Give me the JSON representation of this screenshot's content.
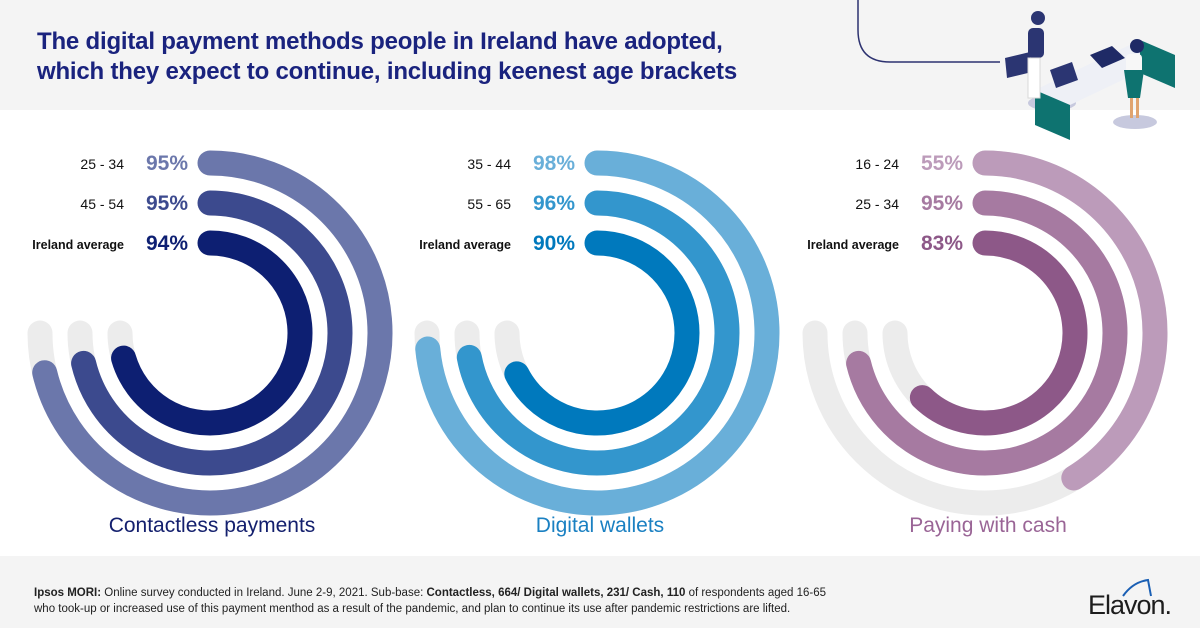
{
  "title_line1": "The digital payment methods people in Ireland have adopted,",
  "title_line2": "which they expect to continue, including keenest age brackets",
  "chart_data": {
    "type": "radial-bar",
    "scale_max_percent": 100,
    "groups": [
      {
        "name": "Contactless payments",
        "label_color": "#14206e",
        "rows": [
          {
            "label": "25 - 34",
            "value": 95,
            "display": "95%",
            "color": "#6b77ab",
            "bold_label": false
          },
          {
            "label": "45 - 54",
            "value": 95,
            "display": "95%",
            "color": "#3c4a8e",
            "bold_label": false
          },
          {
            "label": "Ireland average",
            "value": 94,
            "display": "94%",
            "color": "#0d1f72",
            "bold_label": true
          }
        ]
      },
      {
        "name": "Digital wallets",
        "label_color": "#1a80c2",
        "rows": [
          {
            "label": "35 - 44",
            "value": 98,
            "display": "98%",
            "color": "#69afd9",
            "bold_label": false
          },
          {
            "label": "55 - 65",
            "value": 96,
            "display": "96%",
            "color": "#3396cd",
            "bold_label": false
          },
          {
            "label": "Ireland average",
            "value": 90,
            "display": "90%",
            "color": "#0079bd",
            "bold_label": true
          }
        ]
      },
      {
        "name": "Paying with cash",
        "label_color": "#9a6596",
        "rows": [
          {
            "label": "16 - 24",
            "value": 55,
            "display": "55%",
            "color": "#bc9bba",
            "bold_label": false
          },
          {
            "label": "25 - 34",
            "value": 95,
            "display": "95%",
            "color": "#a67aa1",
            "bold_label": false
          },
          {
            "label": "Ireland average",
            "value": 83,
            "display": "83%",
            "color": "#8d5888",
            "bold_label": true
          }
        ]
      }
    ],
    "track_color": "#ececec"
  },
  "footnote": {
    "source_bold": "Ipsos MORI:",
    "text1": " Online survey conducted in Ireland. June 2-9, 2021. Sub-base: ",
    "bases_bold_1": "Contactless, 664/ Digital wallets, 231/ Cash, 110",
    "text2": " of respondents aged 16-65",
    "line2": "who took-up or increased use of this payment menthod as a result of the pandemic, and plan to continue its use after pandemic restrictions are lifted."
  },
  "logo": {
    "text": "Elavon."
  }
}
